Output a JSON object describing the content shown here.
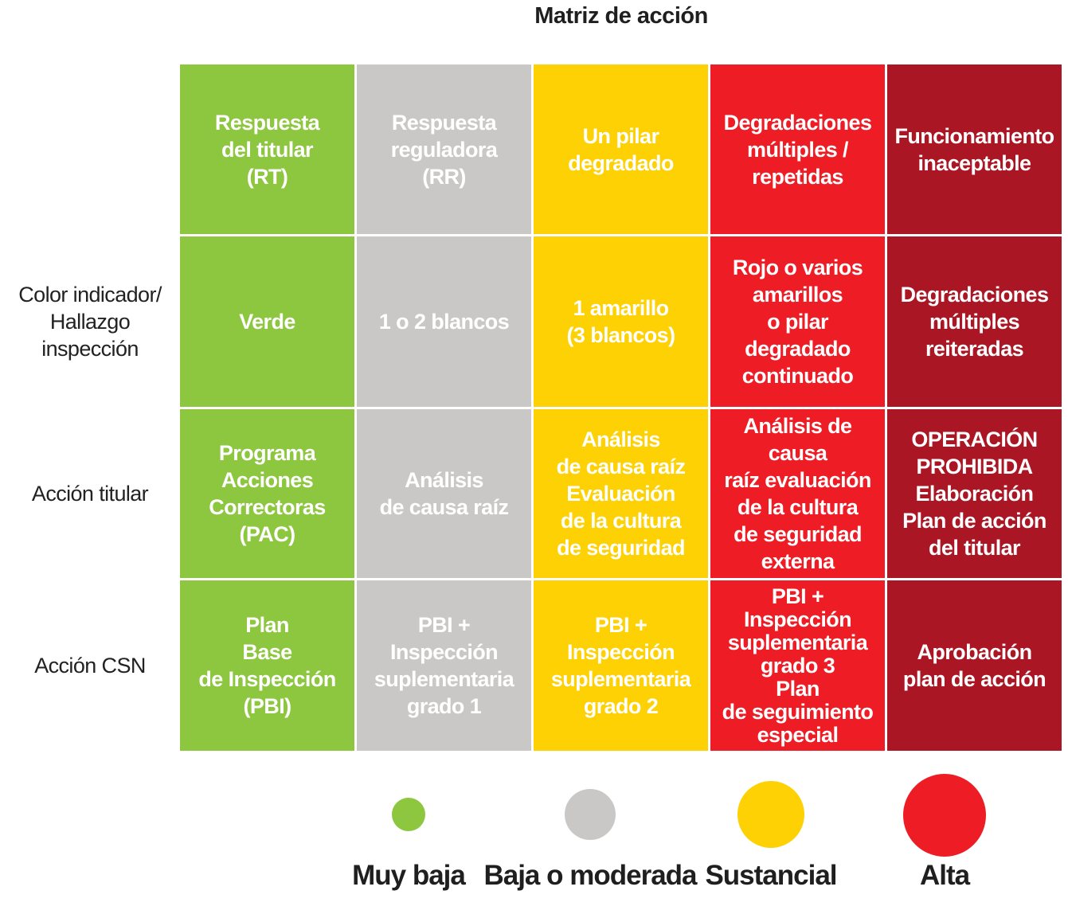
{
  "title": "Matriz de acción",
  "colors": {
    "green": "#8dc63f",
    "gray": "#cac7c7",
    "yellow": "#fdd103",
    "red": "#ee1c25",
    "darkred": "#aa1624"
  },
  "row_labels": [
    "",
    "Color indicador/\nHallazgo inspección",
    "Acción titular",
    "Acción CSN"
  ],
  "columns": [
    {
      "color": "green",
      "cells": [
        "Respuesta\ndel titular\n(RT)",
        "Verde",
        "Programa\nAcciones\nCorrectoras\n(PAC)",
        "Plan\nBase\nde Inspección\n(PBI)"
      ]
    },
    {
      "color": "gray",
      "cells": [
        "Respuesta\nreguladora\n(RR)",
        "1 o 2 blancos",
        "Análisis\nde causa raíz",
        "PBI +\nInspección\nsuplementaria\ngrado 1"
      ]
    },
    {
      "color": "yellow",
      "cells": [
        "Un pilar\ndegradado",
        "1 amarillo\n(3 blancos)",
        "Análisis\nde causa raíz\nEvaluación\nde la cultura\nde seguridad",
        "PBI +\nInspección\nsuplementaria\ngrado 2"
      ]
    },
    {
      "color": "red",
      "cells": [
        "Degradaciones\nmúltiples /\nrepetidas",
        "Rojo o  varios\namarillos\no pilar\ndegradado\ncontinuado",
        "Análisis de causa\nraíz evaluación\nde la cultura\nde seguridad\nexterna",
        "PBI +\nInspección\nsuplementaria\ngrado 3\nPlan\nde seguimiento\nespecial"
      ]
    },
    {
      "color": "darkred",
      "cells": [
        "Funcionamiento\ninaceptable",
        "Degradaciones\nmúltiples\nreiteradas",
        "OPERACIÓN\nPROHIBIDA\nElaboración\nPlan de acción\ndel titular",
        "Aprobación\nplan de acción"
      ]
    }
  ],
  "legend": [
    {
      "label": "Muy baja",
      "color": "#8dc63f"
    },
    {
      "label": "Baja o moderada",
      "color": "#cac7c7"
    },
    {
      "label": "Sustancial",
      "color": "#fdd103"
    },
    {
      "label": "Alta",
      "color": "#ee1c25"
    }
  ]
}
